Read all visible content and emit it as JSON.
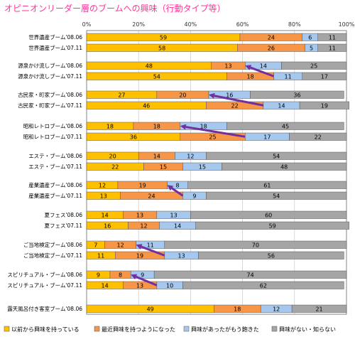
{
  "chart_data": {
    "type": "bar",
    "orientation": "horizontal",
    "stacked": true,
    "percent": true,
    "title": "オピニオンリーダー層のブームへの興味（行動タイプ等）",
    "xlim": [
      0,
      100
    ],
    "xticks": [
      "0%",
      "20%",
      "40%",
      "60%",
      "80%",
      "100%"
    ],
    "grid": true,
    "legend_position": "bottom",
    "series": [
      {
        "name": "以前から興味を持っている",
        "color": "#FFC000"
      },
      {
        "name": "最近興味を持つようになった",
        "color": "#F79646"
      },
      {
        "name": "興味があったがもう飽きた",
        "color": "#A6C8EF"
      },
      {
        "name": "興味がない・知らない",
        "color": "#A5A5A5"
      }
    ],
    "groups": [
      {
        "rows": [
          {
            "label": "世界遺産ブーム'08.06",
            "values": [
              59,
              24,
              6,
              11
            ]
          },
          {
            "label": "世界遺産ブーム'07.11",
            "values": [
              58,
              26,
              5,
              11
            ]
          }
        ],
        "arrow": false
      },
      {
        "rows": [
          {
            "label": "源泉かけ流しブーム'08.06",
            "values": [
              48,
              13,
              14,
              25
            ]
          },
          {
            "label": "源泉かけ流しブーム'07.11",
            "values": [
              54,
              18,
              11,
              17
            ]
          }
        ],
        "arrow": true
      },
      {
        "rows": [
          {
            "label": "古民家・町家ブーム'08.06",
            "values": [
              27,
              20,
              16,
              36
            ]
          },
          {
            "label": "古民家・町家ブーム'07.11",
            "values": [
              46,
              22,
              14,
              19
            ]
          }
        ],
        "arrow": true
      },
      {
        "rows": [
          {
            "label": "昭和レトロブーム'08.06",
            "values": [
              18,
              18,
              18,
              45
            ]
          },
          {
            "label": "昭和レトロブーム'07.11",
            "values": [
              36,
              25,
              17,
              22
            ]
          }
        ],
        "arrow": true
      },
      {
        "rows": [
          {
            "label": "エステ・ブーム'08.06",
            "values": [
              20,
              14,
              12,
              54
            ]
          },
          {
            "label": "エステ・ブーム'07.11",
            "values": [
              22,
              15,
              15,
              48
            ]
          }
        ],
        "arrow": false
      },
      {
        "rows": [
          {
            "label": "産業遺産ブーム'08.06",
            "values": [
              12,
              19,
              8,
              61
            ]
          },
          {
            "label": "産業遺産ブーム'07.11",
            "values": [
              13,
              24,
              9,
              54
            ]
          }
        ],
        "arrow": true
      },
      {
        "rows": [
          {
            "label": "夏フェス'08.06",
            "values": [
              14,
              13,
              13,
              60
            ]
          },
          {
            "label": "夏フェス'07.11",
            "values": [
              16,
              12,
              14,
              59
            ]
          }
        ],
        "arrow": false
      },
      {
        "rows": [
          {
            "label": "ご当地検定ブーム'08.06",
            "values": [
              7,
              12,
              11,
              70
            ]
          },
          {
            "label": "ご当地検定ブーム'07.11",
            "values": [
              11,
              19,
              13,
              56
            ]
          }
        ],
        "arrow": true
      },
      {
        "rows": [
          {
            "label": "スピリチュアル・ブーム'08.06",
            "values": [
              9,
              8,
              9,
              74
            ]
          },
          {
            "label": "スピリチュアル・ブーム'07.11",
            "values": [
              14,
              13,
              10,
              62
            ]
          }
        ],
        "arrow": true
      },
      {
        "rows": [
          {
            "label": "露天風呂付き客室ブーム'08.06",
            "values": [
              49,
              18,
              12,
              21
            ]
          }
        ],
        "arrow": false
      }
    ]
  }
}
